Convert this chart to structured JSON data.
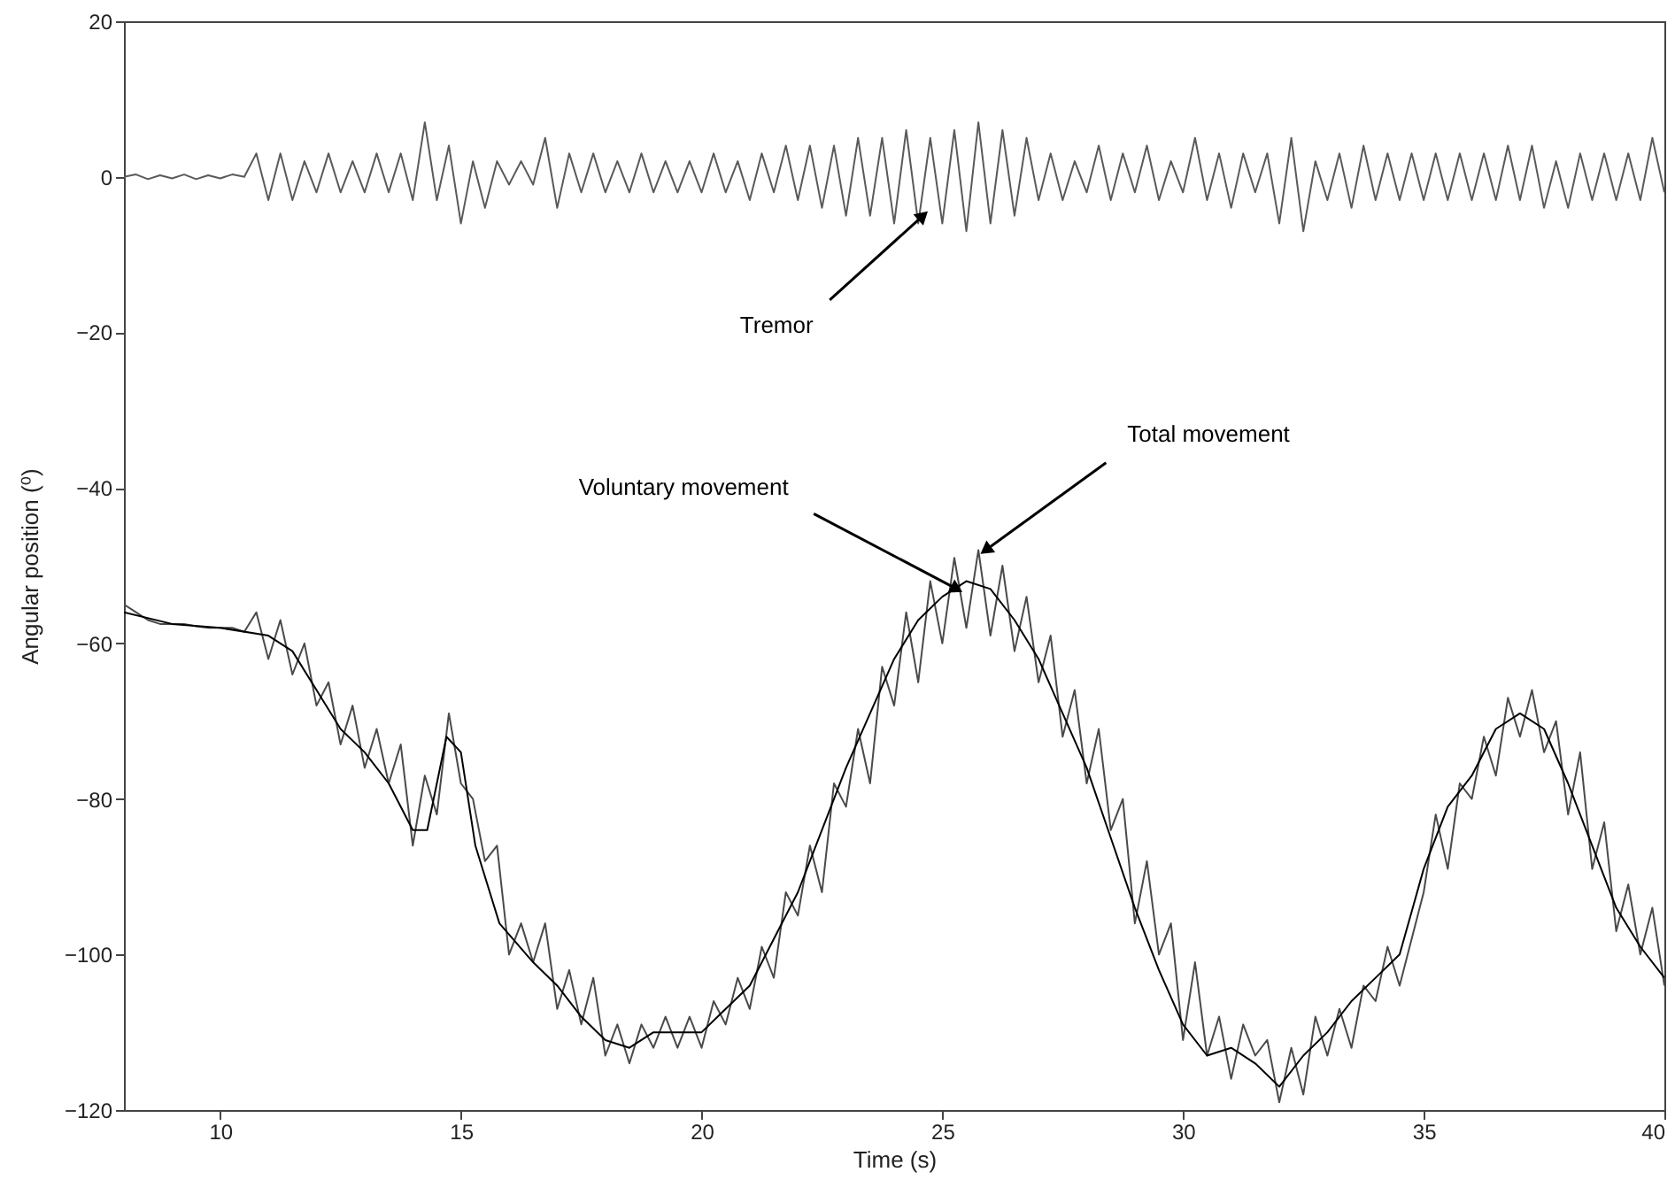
{
  "chart_data": {
    "type": "line",
    "xlabel": "Time (s)",
    "ylabel": "Angular position (⁰)",
    "xlim": [
      8,
      40
    ],
    "ylim": [
      -120,
      20
    ],
    "xticks": [
      10,
      15,
      20,
      25,
      30,
      35,
      40
    ],
    "yticks": [
      -120,
      -100,
      -80,
      -60,
      -40,
      -20,
      0,
      20
    ],
    "grid": false,
    "marker": "none",
    "line_style": "solid",
    "series": [
      {
        "color": "#5a5a5a",
        "x": [
          8,
          8.25,
          8.5,
          8.75,
          9,
          9.25,
          9.5,
          9.75,
          10,
          10.25,
          10.5,
          10.75,
          11,
          11.25,
          11.5,
          11.75,
          12,
          12.25,
          12.5,
          12.75,
          13,
          13.25,
          13.5,
          13.75,
          14,
          14.25,
          14.5,
          14.75,
          15,
          15.25,
          15.5,
          15.75,
          16,
          16.25,
          16.5,
          16.75,
          17,
          17.25,
          17.5,
          17.75,
          18,
          18.25,
          18.5,
          18.75,
          19,
          19.25,
          19.5,
          19.75,
          20,
          20.25,
          20.5,
          20.75,
          21,
          21.25,
          21.5,
          21.75,
          22,
          22.25,
          22.5,
          22.75,
          23,
          23.25,
          23.5,
          23.75,
          24,
          24.25,
          24.5,
          24.75,
          25,
          25.25,
          25.5,
          25.75,
          26,
          26.25,
          26.5,
          26.75,
          27,
          27.25,
          27.5,
          27.75,
          28,
          28.25,
          28.5,
          28.75,
          29,
          29.25,
          29.5,
          29.75,
          30,
          30.25,
          30.5,
          30.75,
          31,
          31.25,
          31.5,
          31.75,
          32,
          32.25,
          32.5,
          32.75,
          33,
          33.25,
          33.5,
          33.75,
          34,
          34.25,
          34.5,
          34.75,
          35,
          35.25,
          35.5,
          35.75,
          36,
          36.25,
          36.5,
          36.75,
          37,
          37.25,
          37.5,
          37.75,
          38,
          38.25,
          38.5,
          38.75,
          39,
          39.25,
          39.5,
          39.75,
          40
        ],
        "values": [
          0,
          0.3,
          -0.3,
          0.2,
          -0.2,
          0.3,
          -0.3,
          0.2,
          -0.2,
          0.3,
          0,
          3,
          -3,
          3,
          -3,
          2,
          -2,
          3,
          -2,
          2,
          -2,
          3,
          -2,
          3,
          -3,
          7,
          -3,
          4,
          -6,
          2,
          -4,
          2,
          -1,
          2,
          -1,
          5,
          -4,
          3,
          -2,
          3,
          -2,
          2,
          -2,
          3,
          -2,
          2,
          -2,
          2,
          -2,
          3,
          -2,
          2,
          -3,
          3,
          -2,
          4,
          -3,
          4,
          -4,
          4,
          -5,
          5,
          -5,
          5,
          -6,
          6,
          -6,
          5,
          -6,
          6,
          -7,
          7,
          -6,
          6,
          -5,
          5,
          -3,
          3,
          -3,
          2,
          -2,
          4,
          -3,
          3,
          -2,
          4,
          -3,
          2,
          -2,
          5,
          -3,
          3,
          -4,
          3,
          -2,
          3,
          -6,
          5,
          -7,
          2,
          -3,
          3,
          -4,
          4,
          -3,
          3,
          -3,
          3,
          -3,
          3,
          -3,
          3,
          -3,
          3,
          -3,
          4,
          -3,
          4,
          -4,
          2,
          -4,
          3,
          -3,
          3,
          -3,
          3,
          -3,
          5,
          -2
        ]
      },
      {
        "color": "#4a4a4a",
        "x": [
          8,
          8.25,
          8.5,
          8.75,
          9,
          9.25,
          9.5,
          9.75,
          10,
          10.25,
          10.5,
          10.75,
          11,
          11.25,
          11.5,
          11.75,
          12,
          12.25,
          12.5,
          12.75,
          13,
          13.25,
          13.5,
          13.75,
          14,
          14.25,
          14.5,
          14.75,
          15,
          15.25,
          15.5,
          15.75,
          16,
          16.25,
          16.5,
          16.75,
          17,
          17.25,
          17.5,
          17.75,
          18,
          18.25,
          18.5,
          18.75,
          19,
          19.25,
          19.5,
          19.75,
          20,
          20.25,
          20.5,
          20.75,
          21,
          21.25,
          21.5,
          21.75,
          22,
          22.25,
          22.5,
          22.75,
          23,
          23.25,
          23.5,
          23.75,
          24,
          24.25,
          24.5,
          24.75,
          25,
          25.25,
          25.5,
          25.75,
          26,
          26.25,
          26.5,
          26.75,
          27,
          27.25,
          27.5,
          27.75,
          28,
          28.25,
          28.5,
          28.75,
          29,
          29.25,
          29.5,
          29.75,
          30,
          30.25,
          30.5,
          30.75,
          31,
          31.25,
          31.5,
          31.75,
          32,
          32.25,
          32.5,
          32.75,
          33,
          33.25,
          33.5,
          33.75,
          34,
          34.25,
          34.5,
          34.75,
          35,
          35.25,
          35.5,
          35.75,
          36,
          36.25,
          36.5,
          36.75,
          37,
          37.25,
          37.5,
          37.75,
          38,
          38.25,
          38.5,
          38.75,
          39,
          39.25,
          39.5,
          39.75,
          40
        ],
        "values": [
          -55,
          -56,
          -57,
          -57.5,
          -57.5,
          -57.5,
          -57.8,
          -58,
          -58,
          -58,
          -58.5,
          -56,
          -62,
          -57,
          -64,
          -60,
          -68,
          -65,
          -73,
          -68,
          -76,
          -71,
          -78,
          -73,
          -86,
          -77,
          -82,
          -69,
          -78,
          -80,
          -88,
          -86,
          -100,
          -96,
          -101,
          -96,
          -107,
          -102,
          -109,
          -103,
          -113,
          -109,
          -114,
          -109,
          -112,
          -108,
          -112,
          -108,
          -112,
          -106,
          -109,
          -103,
          -107,
          -99,
          -103,
          -92,
          -95,
          -86,
          -92,
          -78,
          -81,
          -71,
          -78,
          -63,
          -68,
          -56,
          -65,
          -52,
          -60,
          -49,
          -58,
          -48,
          -59,
          -50,
          -61,
          -54,
          -65,
          -59,
          -72,
          -66,
          -78,
          -71,
          -84,
          -80,
          -96,
          -88,
          -100,
          -96,
          -111,
          -101,
          -113,
          -108,
          -116,
          -109,
          -113,
          -111,
          -119,
          -112,
          -118,
          -108,
          -113,
          -107,
          -112,
          -104,
          -106,
          -99,
          -104,
          -98,
          -92,
          -82,
          -89,
          -78,
          -80,
          -72,
          -77,
          -67,
          -72,
          -66,
          -74,
          -70,
          -82,
          -74,
          -89,
          -83,
          -97,
          -91,
          -100,
          -94,
          -104
        ]
      },
      {
        "color": "#000000",
        "x": [
          8,
          9,
          10,
          11,
          11.5,
          12,
          12.5,
          13,
          13.5,
          14,
          14.3,
          14.7,
          15,
          15.3,
          15.8,
          16.5,
          17,
          17.5,
          18,
          18.5,
          19,
          19.5,
          20,
          20.5,
          21,
          21.5,
          22,
          22.5,
          23,
          23.5,
          24,
          24.5,
          25,
          25.5,
          26,
          26.5,
          27,
          27.5,
          28,
          28.5,
          29,
          29.5,
          30,
          30.5,
          31,
          31.5,
          32,
          32.5,
          33,
          33.5,
          34,
          34.5,
          35,
          35.5,
          36,
          36.5,
          37,
          37.5,
          38,
          38.5,
          39,
          39.5,
          40
        ],
        "values": [
          -56,
          -57.5,
          -58,
          -59,
          -61,
          -66,
          -71,
          -74,
          -78,
          -84,
          -84,
          -72,
          -74,
          -86,
          -96,
          -101,
          -104,
          -108,
          -111,
          -112,
          -110,
          -110,
          -110,
          -107,
          -104,
          -98,
          -92,
          -84,
          -76,
          -69,
          -62,
          -57,
          -54,
          -52,
          -53,
          -57,
          -62,
          -69,
          -76,
          -85,
          -94,
          -102,
          -109,
          -113,
          -112,
          -114,
          -117,
          -113,
          -110,
          -106,
          -103,
          -100,
          -89,
          -81,
          -77,
          -71,
          -69,
          -71,
          -78,
          -86,
          -94,
          -99,
          -103
        ]
      }
    ],
    "annotations": [
      {
        "text": "Tremor",
        "x": 24.6,
        "y": -5
      },
      {
        "text": "Voluntary movement",
        "x": 25.3,
        "y": -53
      },
      {
        "text": "Total movement",
        "x": 25.9,
        "y": -48
      }
    ]
  }
}
